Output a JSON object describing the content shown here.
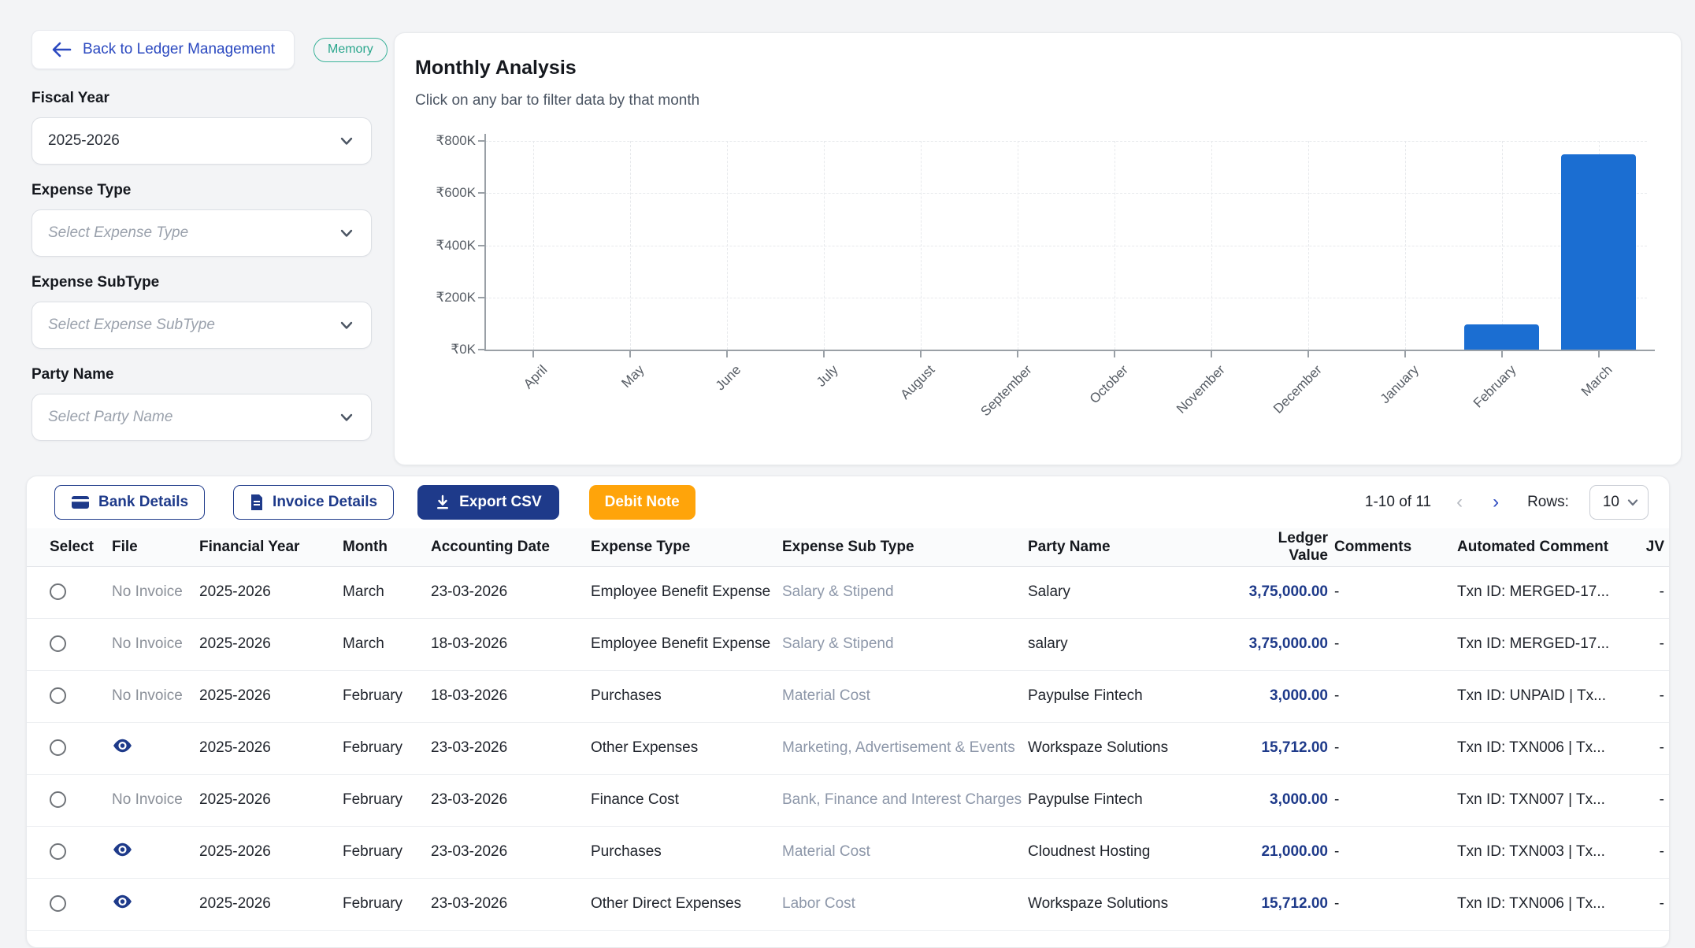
{
  "back_button": {
    "label": "Back to Ledger Management"
  },
  "memory_badge": "Memory",
  "filters": [
    {
      "name": "fiscal-year",
      "label": "Fiscal Year",
      "value": "2025-2026",
      "is_placeholder": false
    },
    {
      "name": "expense-type",
      "label": "Expense Type",
      "value": "Select Expense Type",
      "is_placeholder": true
    },
    {
      "name": "expense-subtype",
      "label": "Expense SubType",
      "value": "Select Expense SubType",
      "is_placeholder": true
    },
    {
      "name": "party-name",
      "label": "Party Name",
      "value": "Select Party Name",
      "is_placeholder": true
    }
  ],
  "chart_card": {
    "title": "Monthly Analysis",
    "subtitle": "Click on any bar to filter data by that month"
  },
  "chart_data": {
    "type": "bar",
    "title": "Monthly Analysis",
    "categories": [
      "April",
      "May",
      "June",
      "July",
      "August",
      "September",
      "October",
      "November",
      "December",
      "January",
      "February",
      "March"
    ],
    "values": [
      0,
      0,
      0,
      0,
      0,
      0,
      0,
      0,
      0,
      0,
      97000,
      750000
    ],
    "xlabel": "",
    "ylabel": "",
    "ylim": [
      0,
      800000
    ],
    "y_tick_labels": [
      "₹800K",
      "₹600K",
      "₹400K",
      "₹200K",
      "₹0K"
    ],
    "grid": "dashed",
    "legend": "none",
    "x_label_angle": -45,
    "bar_color": "#1b6ed2"
  },
  "toolbar": {
    "bank_details": "Bank Details",
    "invoice_details": "Invoice Details",
    "export_csv": "Export CSV",
    "debit_note": "Debit Note"
  },
  "pagination": {
    "range_text": "1-10 of 11",
    "prev": "‹",
    "next": "›",
    "rows_label": "Rows:",
    "rows_value": "10"
  },
  "table": {
    "columns": [
      "Select",
      "File",
      "Financial Year",
      "Month",
      "Accounting Date",
      "Expense Type",
      "Expense Sub Type",
      "Party Name",
      "Ledger Value",
      "Comments",
      "Automated Comment",
      "JV"
    ],
    "rows": [
      {
        "file": "No Invoice",
        "financial_year": "2025-2026",
        "month": "March",
        "accounting_date": "23-03-2026",
        "expense_type": "Employee Benefit Expense",
        "expense_sub_type": "Salary & Stipend",
        "party_name": "Salary",
        "ledger_value": "3,75,000.00",
        "comments": "-",
        "automated_comment": "Txn ID: MERGED-17...",
        "jv": "-"
      },
      {
        "file": "No Invoice",
        "financial_year": "2025-2026",
        "month": "March",
        "accounting_date": "18-03-2026",
        "expense_type": "Employee Benefit Expense",
        "expense_sub_type": "Salary & Stipend",
        "party_name": "salary",
        "ledger_value": "3,75,000.00",
        "comments": "-",
        "automated_comment": "Txn ID: MERGED-17...",
        "jv": "-"
      },
      {
        "file": "No Invoice",
        "financial_year": "2025-2026",
        "month": "February",
        "accounting_date": "18-03-2026",
        "expense_type": "Purchases",
        "expense_sub_type": "Material Cost",
        "party_name": "Paypulse Fintech",
        "ledger_value": "3,000.00",
        "comments": "-",
        "automated_comment": "Txn ID: UNPAID | Tx...",
        "jv": "-"
      },
      {
        "file": "eye",
        "financial_year": "2025-2026",
        "month": "February",
        "accounting_date": "23-03-2026",
        "expense_type": "Other Expenses",
        "expense_sub_type": "Marketing, Advertisement & Events",
        "party_name": "Workspaze Solutions",
        "ledger_value": "15,712.00",
        "comments": "-",
        "automated_comment": "Txn ID: TXN006 | Tx...",
        "jv": "-"
      },
      {
        "file": "No Invoice",
        "financial_year": "2025-2026",
        "month": "February",
        "accounting_date": "23-03-2026",
        "expense_type": "Finance Cost",
        "expense_sub_type": "Bank, Finance and Interest Charges",
        "party_name": "Paypulse Fintech",
        "ledger_value": "3,000.00",
        "comments": "-",
        "automated_comment": "Txn ID: TXN007 | Tx...",
        "jv": "-"
      },
      {
        "file": "eye",
        "financial_year": "2025-2026",
        "month": "February",
        "accounting_date": "23-03-2026",
        "expense_type": "Purchases",
        "expense_sub_type": "Material Cost",
        "party_name": "Cloudnest Hosting",
        "ledger_value": "21,000.00",
        "comments": "-",
        "automated_comment": "Txn ID: TXN003 | Tx...",
        "jv": "-"
      },
      {
        "file": "eye",
        "financial_year": "2025-2026",
        "month": "February",
        "accounting_date": "23-03-2026",
        "expense_type": "Other Direct Expenses",
        "expense_sub_type": "Labor Cost",
        "party_name": "Workspaze Solutions",
        "ledger_value": "15,712.00",
        "comments": "-",
        "automated_comment": "Txn ID: TXN006 | Tx...",
        "jv": "-"
      }
    ]
  },
  "colors": {
    "navy": "#1e3a8a",
    "orange": "#ffa40a",
    "teal": "#2aa68c",
    "link_blue": "#2b49c0",
    "bar_blue": "#1b6ed2"
  }
}
